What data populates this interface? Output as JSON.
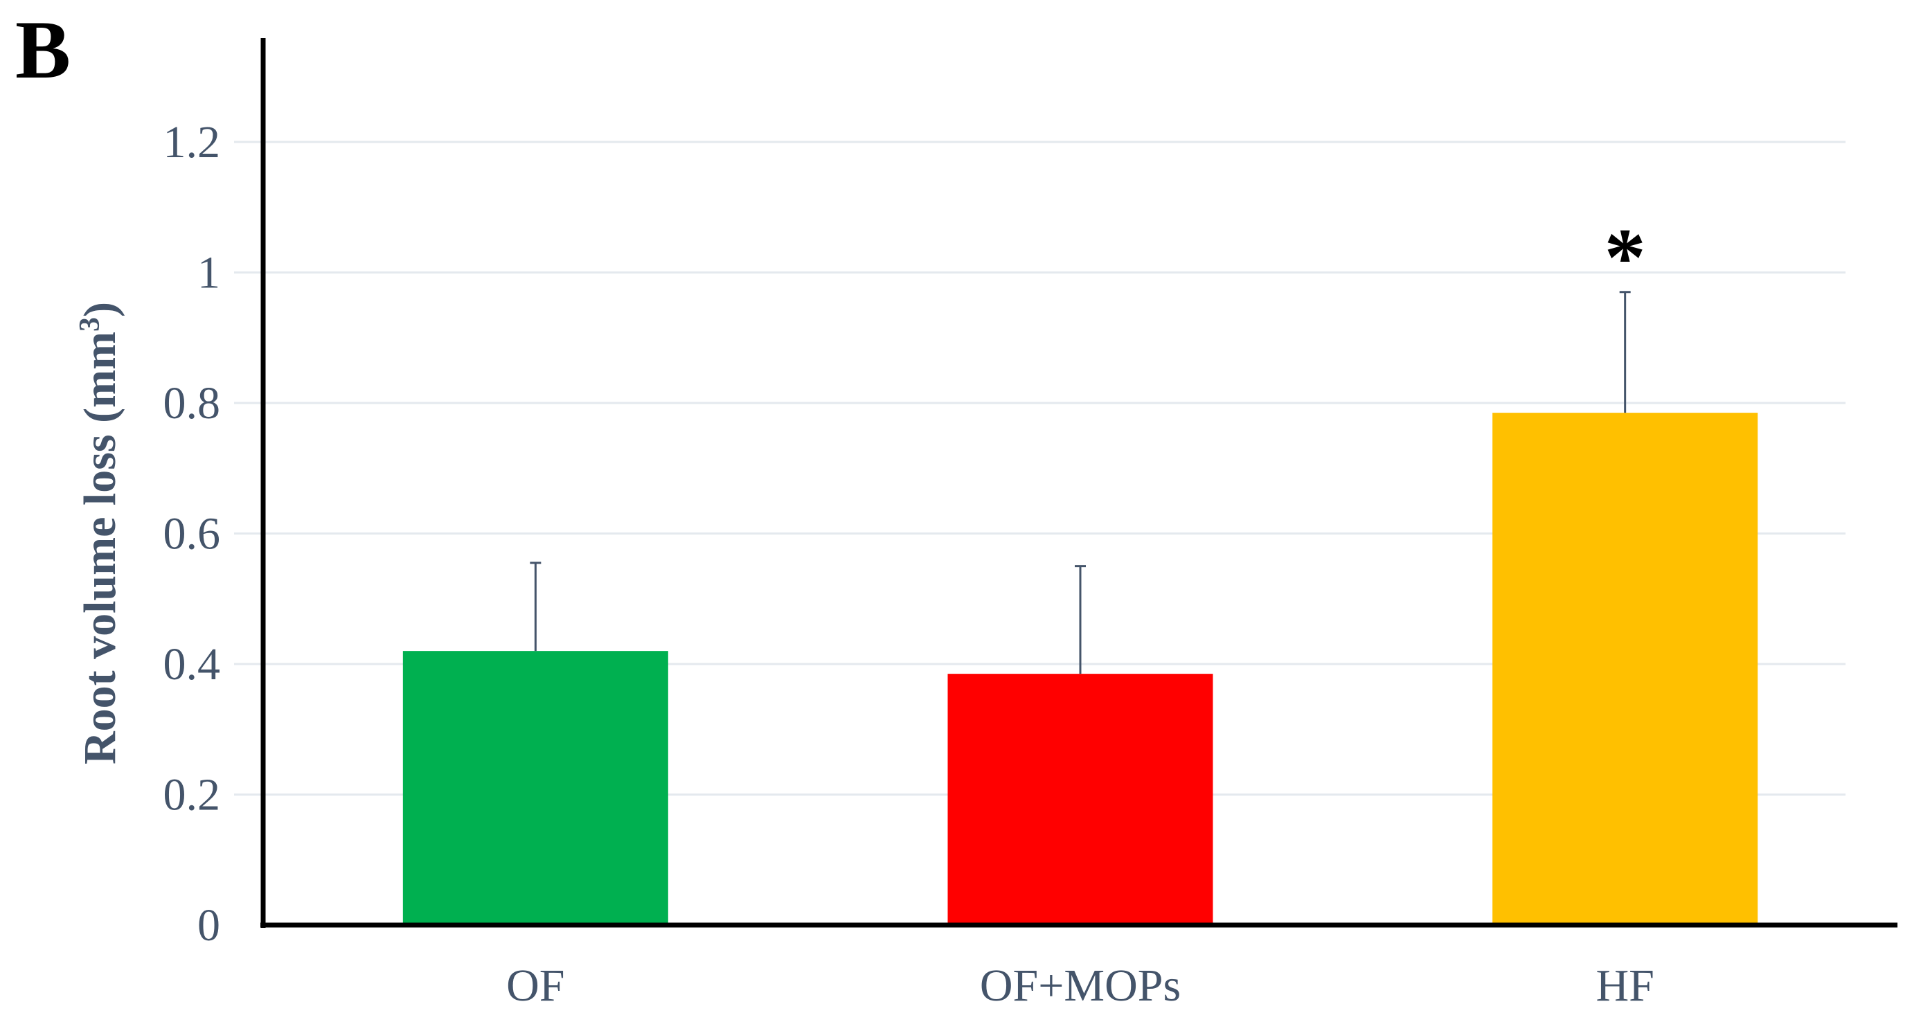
{
  "panel_label": "B",
  "chart_data": {
    "type": "bar",
    "title": "",
    "xlabel": "",
    "ylabel_main": "Root volume loss (mm",
    "ylabel_sup": "3",
    "ylabel_close": ")",
    "categories": [
      "OF",
      "OF+MOPs",
      "HF"
    ],
    "values": [
      0.42,
      0.385,
      0.785
    ],
    "error_plus": [
      0.135,
      0.165,
      0.185
    ],
    "colors": [
      "#00b050",
      "#ff0000",
      "#ffc000"
    ],
    "annotations": [
      "",
      "",
      "*"
    ],
    "ylim": [
      0,
      1.3
    ],
    "yticks": [
      0,
      0.2,
      0.4,
      0.6,
      0.8,
      1,
      1.2
    ],
    "ytick_labels": [
      "0",
      "0.2",
      "0.4",
      "0.6",
      "0.8",
      "1",
      "1.2"
    ],
    "grid": true,
    "legend": "none"
  }
}
